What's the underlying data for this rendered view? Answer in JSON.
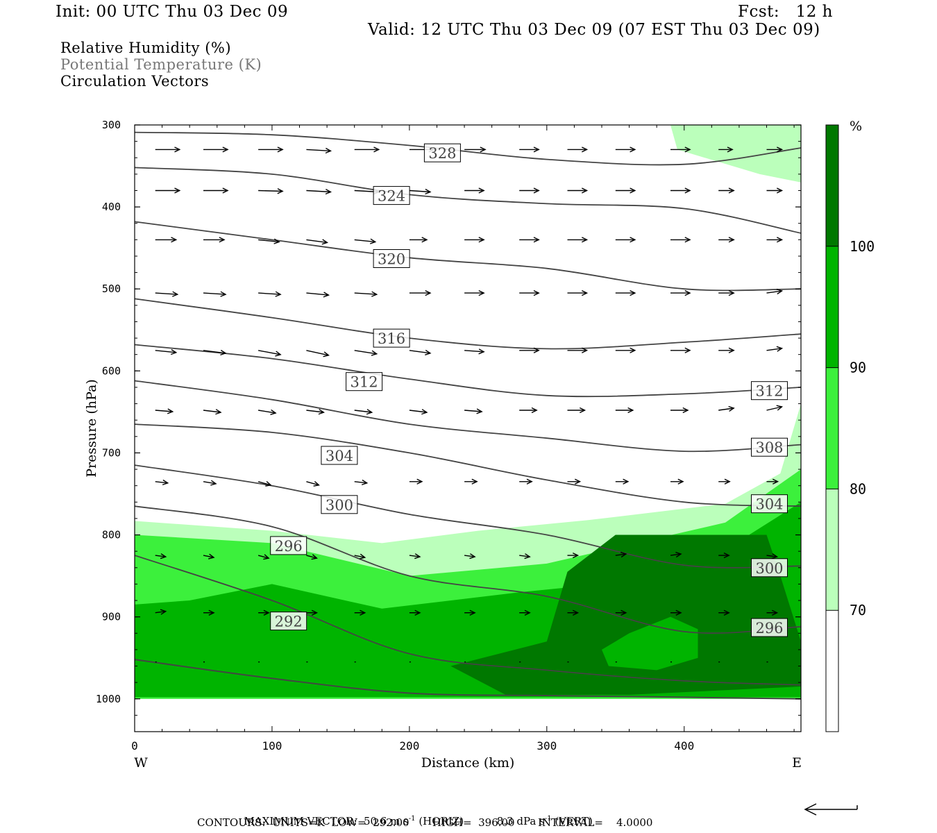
{
  "header": {
    "init": "Init: 00 UTC Thu 03 Dec 09",
    "fcst": "Fcst:   12 h",
    "valid": "Valid: 12 UTC Thu 03 Dec 09 (07 EST Thu 03 Dec 09)"
  },
  "legend": {
    "rh": "Relative Humidity (%)",
    "theta": "Potential Temperature (K)",
    "vectors": "Circulation Vectors"
  },
  "colors": {
    "rh_fill": [
      "#ffffff",
      "#bbffbb",
      "#3cf03c",
      "#00b400",
      "#007800"
    ],
    "contour": "#444444",
    "vector": "#000000"
  },
  "chart_data": {
    "type": "cross-section",
    "xlabel": "Distance (km)",
    "ylabel": "Pressure (hPa)",
    "xlim": [
      0,
      485
    ],
    "ylim": [
      1040,
      300
    ],
    "xticks": [
      0,
      100,
      200,
      300,
      400
    ],
    "yticks": [
      300,
      400,
      500,
      600,
      700,
      800,
      900,
      1000
    ],
    "x_end_labels": {
      "left": "W",
      "right": "E"
    },
    "rh_colorbar": {
      "unit": "%",
      "levels": [
        70,
        80,
        90,
        100
      ]
    },
    "theta_labels": [
      {
        "value": "328",
        "x": 224,
        "p": 334
      },
      {
        "value": "324",
        "x": 187,
        "p": 386
      },
      {
        "value": "320",
        "x": 187,
        "p": 463
      },
      {
        "value": "316",
        "x": 187,
        "p": 560
      },
      {
        "value": "312",
        "x": 167,
        "p": 613
      },
      {
        "value": "312",
        "x": 462,
        "p": 624
      },
      {
        "value": "308",
        "x": 462,
        "p": 693
      },
      {
        "value": "304",
        "x": 149,
        "p": 703
      },
      {
        "value": "304",
        "x": 462,
        "p": 762
      },
      {
        "value": "300",
        "x": 149,
        "p": 763
      },
      {
        "value": "300",
        "x": 462,
        "p": 840
      },
      {
        "value": "296",
        "x": 112,
        "p": 813
      },
      {
        "value": "296",
        "x": 462,
        "p": 913
      },
      {
        "value": "292",
        "x": 112,
        "p": 905
      }
    ],
    "theta_lines": [
      [
        [
          0,
          309
        ],
        [
          100,
          312
        ],
        [
          200,
          325
        ],
        [
          300,
          342
        ],
        [
          400,
          348
        ],
        [
          485,
          328
        ]
      ],
      [
        [
          0,
          352
        ],
        [
          100,
          360
        ],
        [
          200,
          385
        ],
        [
          300,
          396
        ],
        [
          400,
          402
        ],
        [
          485,
          432
        ]
      ],
      [
        [
          0,
          418
        ],
        [
          100,
          440
        ],
        [
          200,
          462
        ],
        [
          300,
          475
        ],
        [
          400,
          500
        ],
        [
          485,
          500
        ]
      ],
      [
        [
          0,
          512
        ],
        [
          100,
          535
        ],
        [
          200,
          560
        ],
        [
          300,
          573
        ],
        [
          400,
          565
        ],
        [
          485,
          555
        ]
      ],
      [
        [
          0,
          568
        ],
        [
          100,
          585
        ],
        [
          200,
          610
        ],
        [
          300,
          630
        ],
        [
          400,
          628
        ],
        [
          485,
          620
        ]
      ],
      [
        [
          0,
          612
        ],
        [
          100,
          635
        ],
        [
          200,
          665
        ],
        [
          300,
          682
        ],
        [
          400,
          698
        ],
        [
          485,
          690
        ]
      ],
      [
        [
          0,
          665
        ],
        [
          100,
          675
        ],
        [
          200,
          700
        ],
        [
          300,
          733
        ],
        [
          400,
          760
        ],
        [
          485,
          765
        ]
      ],
      [
        [
          0,
          715
        ],
        [
          100,
          740
        ],
        [
          200,
          775
        ],
        [
          300,
          800
        ],
        [
          400,
          837
        ],
        [
          485,
          838
        ]
      ],
      [
        [
          0,
          765
        ],
        [
          100,
          790
        ],
        [
          200,
          850
        ],
        [
          300,
          875
        ],
        [
          400,
          918
        ],
        [
          485,
          912
        ]
      ],
      [
        [
          0,
          825
        ],
        [
          100,
          880
        ],
        [
          200,
          945
        ],
        [
          300,
          965
        ],
        [
          400,
          978
        ],
        [
          485,
          983
        ]
      ],
      [
        [
          0,
          952
        ],
        [
          100,
          975
        ],
        [
          200,
          993
        ],
        [
          300,
          996
        ],
        [
          400,
          998
        ],
        [
          485,
          1000
        ]
      ]
    ],
    "rh_regions": [
      {
        "level": 70,
        "points": [
          [
            0,
            783
          ],
          [
            100,
            795
          ],
          [
            180,
            810
          ],
          [
            250,
            795
          ],
          [
            330,
            782
          ],
          [
            430,
            762
          ],
          [
            470,
            725
          ],
          [
            485,
            640
          ],
          [
            485,
            1000
          ],
          [
            0,
            1000
          ]
        ]
      },
      {
        "level": 70,
        "points": [
          [
            390,
            300
          ],
          [
            485,
            300
          ],
          [
            485,
            370
          ],
          [
            455,
            360
          ],
          [
            395,
            330
          ]
        ]
      },
      {
        "level": 80,
        "points": [
          [
            0,
            800
          ],
          [
            100,
            810
          ],
          [
            200,
            850
          ],
          [
            300,
            835
          ],
          [
            430,
            785
          ],
          [
            485,
            720
          ],
          [
            485,
            1000
          ],
          [
            0,
            1000
          ]
        ]
      },
      {
        "level": 90,
        "points": [
          [
            0,
            885
          ],
          [
            40,
            880
          ],
          [
            100,
            860
          ],
          [
            180,
            890
          ],
          [
            280,
            870
          ],
          [
            400,
            850
          ],
          [
            485,
            760
          ],
          [
            485,
            998
          ],
          [
            0,
            998
          ]
        ]
      },
      {
        "level": 100,
        "points": [
          [
            230,
            960
          ],
          [
            300,
            930
          ],
          [
            315,
            845
          ],
          [
            350,
            800
          ],
          [
            460,
            800
          ],
          [
            470,
            850
          ],
          [
            485,
            930
          ],
          [
            485,
            985
          ],
          [
            360,
            995
          ],
          [
            270,
            995
          ]
        ]
      },
      {
        "level": 90,
        "points": [
          [
            340,
            940
          ],
          [
            360,
            920
          ],
          [
            390,
            900
          ],
          [
            410,
            915
          ],
          [
            410,
            950
          ],
          [
            380,
            965
          ],
          [
            345,
            960
          ]
        ]
      }
    ],
    "vector_rows": [
      {
        "p": 330,
        "x": [
          15,
          50,
          90,
          125,
          160,
          200,
          240,
          280,
          315,
          350,
          390,
          425,
          460
        ],
        "dx": [
          35,
          35,
          35,
          35,
          35,
          35,
          30,
          28,
          28,
          28,
          28,
          20,
          22
        ],
        "dp": [
          0,
          0,
          0,
          2,
          0,
          0,
          0,
          0,
          0,
          0,
          0,
          0,
          0
        ]
      },
      {
        "p": 380,
        "x": [
          15,
          50,
          90,
          125,
          160,
          200,
          240,
          280,
          315,
          350,
          390,
          425,
          460
        ],
        "dx": [
          35,
          35,
          35,
          35,
          35,
          30,
          28,
          28,
          28,
          28,
          28,
          22,
          22
        ],
        "dp": [
          0,
          0,
          1,
          2,
          2,
          2,
          0,
          0,
          0,
          0,
          0,
          0,
          0
        ]
      },
      {
        "p": 440,
        "x": [
          15,
          50,
          90,
          125,
          160,
          200,
          240,
          280,
          315,
          350,
          390,
          425,
          460
        ],
        "dx": [
          30,
          30,
          30,
          30,
          30,
          25,
          28,
          28,
          28,
          28,
          28,
          22,
          22
        ],
        "dp": [
          0,
          0,
          3,
          4,
          3,
          0,
          0,
          0,
          0,
          0,
          0,
          0,
          0
        ]
      },
      {
        "p": 505,
        "x": [
          15,
          50,
          90,
          125,
          160,
          200,
          240,
          280,
          315,
          350,
          390,
          425,
          460
        ],
        "dx": [
          32,
          32,
          32,
          32,
          32,
          30,
          28,
          28,
          28,
          28,
          28,
          22,
          22
        ],
        "dp": [
          2,
          2,
          2,
          3,
          2,
          0,
          0,
          0,
          0,
          0,
          0,
          0,
          -3
        ]
      },
      {
        "p": 575,
        "x": [
          15,
          50,
          90,
          125,
          160,
          200,
          240,
          280,
          315,
          350,
          390,
          425,
          460
        ],
        "dx": [
          30,
          32,
          32,
          32,
          32,
          30,
          28,
          28,
          28,
          28,
          28,
          22,
          22
        ],
        "dp": [
          3,
          4,
          6,
          7,
          5,
          4,
          2,
          0,
          0,
          0,
          0,
          0,
          -3
        ]
      },
      {
        "p": 648,
        "x": [
          15,
          50,
          90,
          125,
          160,
          200,
          240,
          280,
          315,
          350,
          390,
          425,
          460
        ],
        "dx": [
          25,
          25,
          25,
          25,
          25,
          25,
          25,
          25,
          25,
          25,
          25,
          22,
          22
        ],
        "dp": [
          2,
          3,
          4,
          3,
          3,
          3,
          2,
          0,
          0,
          0,
          0,
          -3,
          -5
        ]
      },
      {
        "p": 735,
        "x": [
          15,
          50,
          90,
          125,
          160,
          200,
          240,
          280,
          315,
          350,
          390,
          425,
          460
        ],
        "dx": [
          18,
          18,
          18,
          18,
          18,
          18,
          18,
          18,
          18,
          18,
          18,
          16,
          16
        ],
        "dp": [
          2,
          3,
          5,
          5,
          2,
          0,
          0,
          0,
          0,
          0,
          0,
          0,
          0
        ]
      },
      {
        "p": 825,
        "x": [
          15,
          50,
          90,
          125,
          160,
          200,
          240,
          280,
          315,
          350,
          390,
          425,
          460
        ],
        "dx": [
          15,
          15,
          15,
          15,
          15,
          15,
          15,
          15,
          15,
          15,
          15,
          15,
          15
        ],
        "dp": [
          2,
          3,
          4,
          4,
          3,
          2,
          2,
          2,
          0,
          -2,
          -2,
          0,
          2
        ]
      },
      {
        "p": 895,
        "x": [
          15,
          50,
          90,
          125,
          160,
          200,
          240,
          280,
          315,
          350,
          390,
          425,
          460
        ],
        "dx": [
          15,
          15,
          15,
          15,
          15,
          15,
          15,
          15,
          15,
          15,
          15,
          15,
          15
        ],
        "dp": [
          -2,
          0,
          0,
          0,
          0,
          0,
          0,
          0,
          0,
          0,
          0,
          0,
          0
        ]
      },
      {
        "p": 955,
        "x": [
          15,
          50,
          90,
          125,
          160,
          200,
          240,
          280,
          315,
          350,
          390,
          425,
          460
        ],
        "dx": [
          2,
          2,
          2,
          2,
          2,
          2,
          2,
          2,
          2,
          2,
          2,
          2,
          2
        ],
        "dp": [
          0,
          0,
          0,
          0,
          0,
          0,
          0,
          0,
          0,
          0,
          0,
          0,
          0
        ]
      }
    ]
  },
  "footer": {
    "max_vector_label": "MAXIMUM VECTOR:",
    "horiz_value": "50.6 m s",
    "horiz_unit": "(HORIZ)",
    "vert_value": "8.3 dPa s",
    "vert_unit": "(VERT)",
    "exponent": "-1",
    "contours": "CONTOURS:  UNITS=K  LOW=  292.00       HIGH=  396.00       INTERVAL=    4.0000"
  }
}
